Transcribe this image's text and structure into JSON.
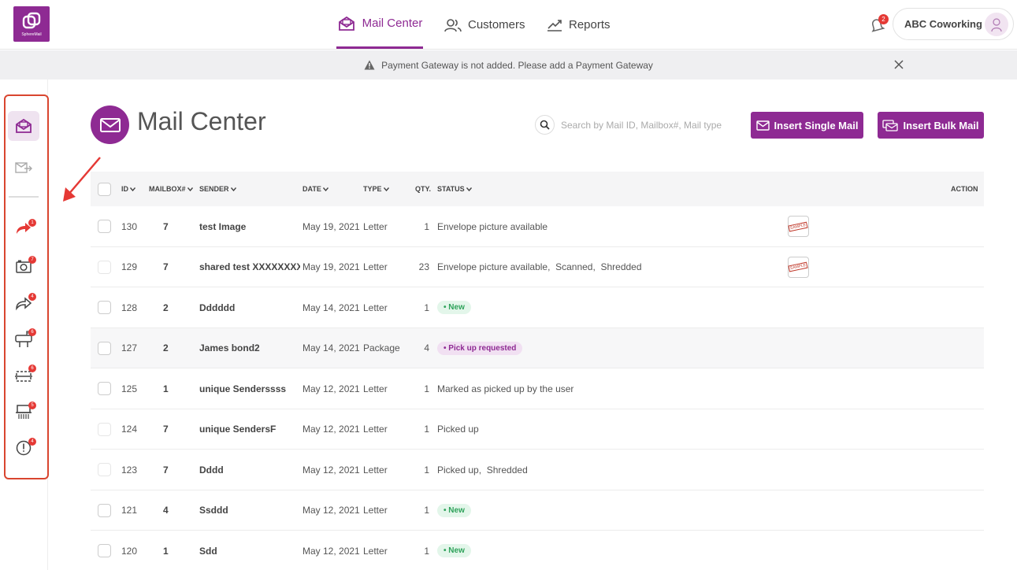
{
  "logo": {
    "text": "SphereMail"
  },
  "nav": {
    "items": [
      {
        "label": "Mail Center"
      },
      {
        "label": "Customers"
      },
      {
        "label": "Reports"
      }
    ],
    "bell_count": "2",
    "account_name": "ABC Coworking"
  },
  "banner": {
    "message": "Payment Gateway is not added. Please add a  Payment Gateway"
  },
  "sidebar": {
    "badges": [
      "1",
      "7",
      "4",
      "6",
      "6",
      "5",
      "4"
    ]
  },
  "page": {
    "title": "Mail Center",
    "search_placeholder": "Search by Mail ID, Mailbox#, Mail type",
    "insert_single": "Insert Single Mail",
    "insert_bulk": "Insert Bulk Mail"
  },
  "table": {
    "headers": {
      "id": "ID",
      "mailbox": "MAILBOX#",
      "sender": "SENDER",
      "date": "DATE",
      "type": "TYPE",
      "qty": "QTY.",
      "status": "STATUS",
      "action": "ACTION"
    },
    "sample_label": "SAMPLE",
    "rows": [
      {
        "id": "130",
        "mailbox": "7",
        "sender": "test Image",
        "date": "May 19, 2021",
        "type": "Letter",
        "qty": "1",
        "status": "Envelope picture available"
      },
      {
        "id": "129",
        "mailbox": "7",
        "sender": "shared test XXXXXXXXX",
        "date": "May 19, 2021",
        "type": "Letter",
        "qty": "23",
        "status": "Envelope picture available,  Scanned,  Shredded"
      },
      {
        "id": "128",
        "mailbox": "2",
        "sender": "Dddddd",
        "date": "May 14, 2021",
        "type": "Letter",
        "qty": "1",
        "status": "• New"
      },
      {
        "id": "127",
        "mailbox": "2",
        "sender": "James bond2",
        "date": "May 14, 2021",
        "type": "Package",
        "qty": "4",
        "status": "• Pick up requested"
      },
      {
        "id": "125",
        "mailbox": "1",
        "sender": "unique Senderssss",
        "date": "May 12, 2021",
        "type": "Letter",
        "qty": "1",
        "status": "Marked as picked up by the user"
      },
      {
        "id": "124",
        "mailbox": "7",
        "sender": "unique SendersF",
        "date": "May 12, 2021",
        "type": "Letter",
        "qty": "1",
        "status": "Picked up"
      },
      {
        "id": "123",
        "mailbox": "7",
        "sender": "Dddd",
        "date": "May 12, 2021",
        "type": "Letter",
        "qty": "1",
        "status": "Picked up,  Shredded"
      },
      {
        "id": "121",
        "mailbox": "4",
        "sender": "Ssddd",
        "date": "May 12, 2021",
        "type": "Letter",
        "qty": "1",
        "status": "• New"
      },
      {
        "id": "120",
        "mailbox": "1",
        "sender": "Sdd",
        "date": "May 12, 2021",
        "type": "Letter",
        "qty": "1",
        "status": "• New"
      }
    ]
  }
}
